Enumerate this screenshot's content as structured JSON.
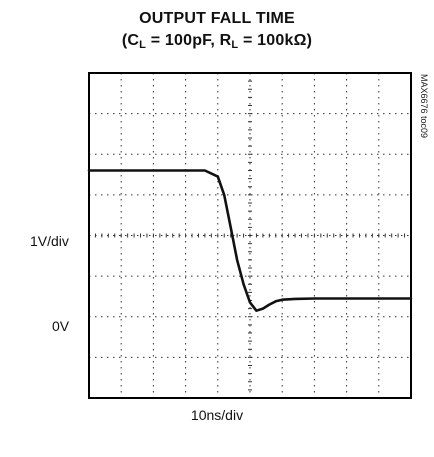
{
  "chart_data": {
    "type": "line",
    "title_line1": "OUTPUT FALL TIME",
    "title_line2": {
      "open": "(C",
      "sub1": "L",
      "mid": " = 100pF, R",
      "sub2": "L",
      "close": " = 100kΩ)"
    },
    "xlabel": "10ns/div",
    "ylabel": "1V/div",
    "zero_label": "0V",
    "side_label": "MAX6676 toc09",
    "grid": true,
    "x_divisions": 10,
    "y_divisions": 8,
    "xlim": [
      0,
      100
    ],
    "ylim": [
      -1,
      7
    ],
    "series": [
      {
        "color": "#111111",
        "x": [
          0,
          10,
          20,
          30,
          36,
          40,
          42,
          44,
          46,
          48,
          50,
          52,
          54,
          56,
          58,
          60,
          64,
          70,
          80,
          90,
          100
        ],
        "y": [
          4.6,
          4.6,
          4.6,
          4.6,
          4.6,
          4.45,
          4.0,
          3.2,
          2.4,
          1.8,
          1.35,
          1.15,
          1.2,
          1.3,
          1.38,
          1.42,
          1.44,
          1.45,
          1.45,
          1.45,
          1.45
        ]
      }
    ]
  }
}
